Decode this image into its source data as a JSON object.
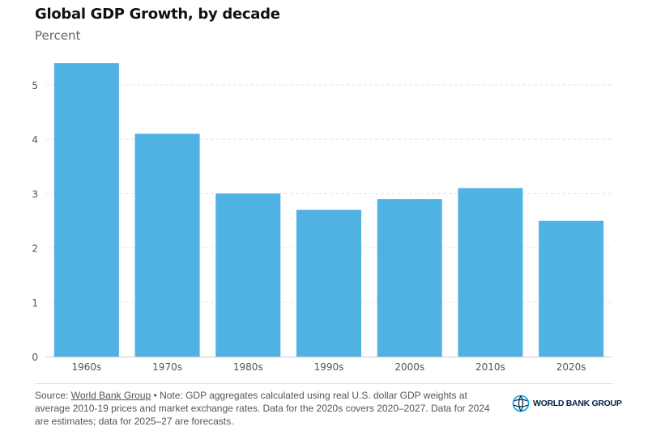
{
  "chart_data": {
    "type": "bar",
    "title": "Global GDP Growth, by decade",
    "subtitle": "Percent",
    "categories": [
      "1960s",
      "1970s",
      "1980s",
      "1990s",
      "2000s",
      "2010s",
      "2020s"
    ],
    "values": [
      5.4,
      4.1,
      3.0,
      2.7,
      2.9,
      3.1,
      2.5
    ],
    "ylim": [
      0,
      5.5
    ],
    "yticks": [
      0,
      1,
      2,
      3,
      4,
      5
    ],
    "grid": true,
    "bar_color": "#4fb2e3"
  },
  "footer": {
    "source_label": "Source: ",
    "source_link": "World Bank Group",
    "note": " • Note: GDP aggregates calculated using real U.S. dollar GDP weights at average 2010-19 prices and market exchange rates. Data for the 2020s covers 2020–2027. Data for 2024 are estimates; data for 2025–27 are forecasts.",
    "logo_text": "WORLD BANK GROUP"
  }
}
